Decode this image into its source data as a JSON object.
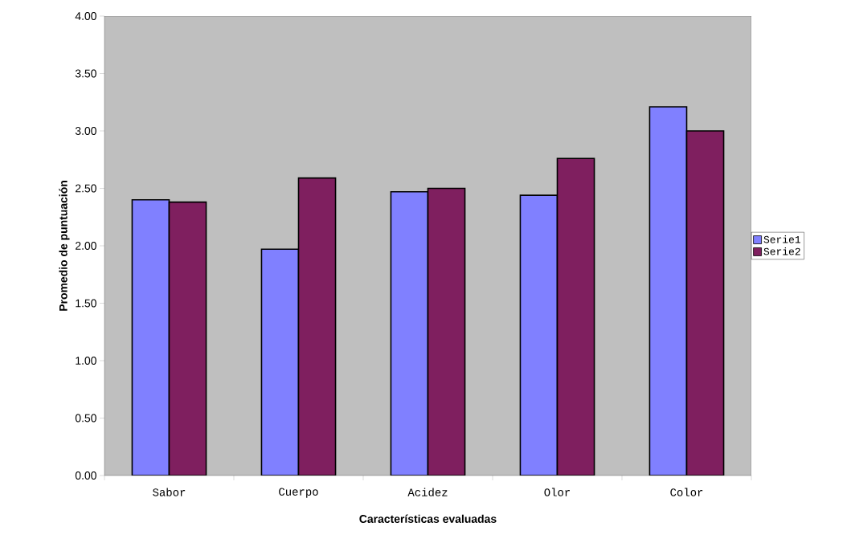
{
  "chart_data": {
    "type": "bar",
    "xlabel": "Características evaluadas",
    "ylabel": "Promedio de puntuación",
    "categories": [
      "Sabor",
      "Cuerpo",
      "Acidez",
      "Olor",
      "Color"
    ],
    "series": [
      {
        "name": "Serie1",
        "color": "#8080ff",
        "values": [
          2.4,
          1.97,
          2.47,
          2.44,
          3.21
        ]
      },
      {
        "name": "Serie2",
        "color": "#7f1f5f",
        "values": [
          2.38,
          2.59,
          2.5,
          2.76,
          3.0
        ]
      }
    ],
    "ylim": [
      0,
      4
    ],
    "yticks": [
      {
        "value": 0,
        "label": "0.00"
      },
      {
        "value": 0.5,
        "label": "0.50"
      },
      {
        "value": 1,
        "label": "1.00"
      },
      {
        "value": 1.5,
        "label": "1.50"
      },
      {
        "value": 2,
        "label": "2.00"
      },
      {
        "value": 2.5,
        "label": "2.50"
      },
      {
        "value": 3,
        "label": "3.00"
      },
      {
        "value": 3.5,
        "label": "3.50"
      },
      {
        "value": 4,
        "label": "4.00"
      }
    ],
    "legend": "right"
  }
}
